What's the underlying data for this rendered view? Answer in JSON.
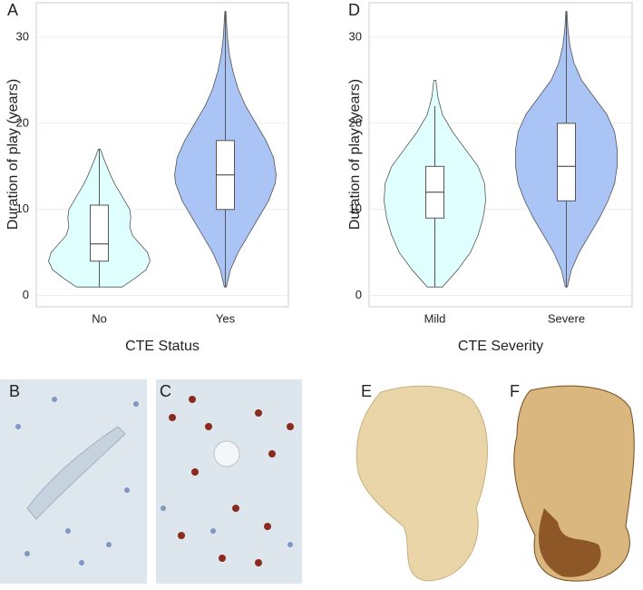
{
  "chart_data": [
    {
      "type": "violin",
      "panel_label": "A",
      "y_label": "Duration of play (years)",
      "x_label": "CTE Status",
      "ylim": [
        -1.3,
        34
      ],
      "yticks": [
        0,
        10,
        20,
        30
      ],
      "grid": true,
      "groups": [
        {
          "name": "No",
          "color": "#e0ffff",
          "box": {
            "min": 1,
            "q1": 4,
            "median": 6,
            "q3": 10.5,
            "max": 17
          },
          "violin": {
            "y": [
              1,
              2,
              3,
              4,
              5,
              6,
              7,
              8,
              9,
              10,
              11,
              12,
              13,
              14,
              15,
              16,
              17
            ],
            "width": [
              0.45,
              0.7,
              0.92,
              1.0,
              0.95,
              0.8,
              0.65,
              0.6,
              0.62,
              0.6,
              0.5,
              0.4,
              0.3,
              0.22,
              0.15,
              0.08,
              0.02
            ]
          }
        },
        {
          "name": "Yes",
          "color": "#a9c4f5",
          "box": {
            "min": 1,
            "q1": 10,
            "median": 14,
            "q3": 18,
            "max": 33
          },
          "violin": {
            "y": [
              1,
              3,
              5,
              7,
              9,
              11,
              13,
              14,
              16,
              18,
              20,
              22,
              24,
              26,
              28,
              30,
              33
            ],
            "width": [
              0.02,
              0.1,
              0.25,
              0.45,
              0.65,
              0.85,
              0.98,
              1.0,
              0.95,
              0.8,
              0.6,
              0.4,
              0.25,
              0.15,
              0.08,
              0.04,
              0.01
            ]
          }
        }
      ]
    },
    {
      "type": "violin",
      "panel_label": "D",
      "y_label": "Duration of play (years)",
      "x_label": "CTE Severity",
      "ylim": [
        -1.3,
        34
      ],
      "yticks": [
        0,
        10,
        20,
        30
      ],
      "grid": true,
      "groups": [
        {
          "name": "Mild",
          "color": "#e0ffff",
          "box": {
            "min": 1,
            "q1": 9,
            "median": 12,
            "q3": 15,
            "max": 22
          },
          "violin": {
            "y": [
              1,
              3,
              5,
              7,
              9,
              11,
              13,
              15,
              17,
              19,
              21,
              23,
              25
            ],
            "width": [
              0.15,
              0.45,
              0.7,
              0.85,
              0.95,
              1.0,
              0.98,
              0.85,
              0.6,
              0.35,
              0.15,
              0.06,
              0.02
            ]
          }
        },
        {
          "name": "Severe",
          "color": "#a9c4f5",
          "box": {
            "min": 1,
            "q1": 11,
            "median": 15,
            "q3": 20,
            "max": 33
          },
          "violin": {
            "y": [
              1,
              3,
              5,
              7,
              9,
              11,
              13,
              15,
              17,
              19,
              21,
              23,
              25,
              27,
              29,
              31,
              33
            ],
            "width": [
              0.02,
              0.1,
              0.25,
              0.45,
              0.65,
              0.82,
              0.95,
              1.0,
              1.0,
              0.95,
              0.8,
              0.55,
              0.3,
              0.15,
              0.07,
              0.03,
              0.01
            ]
          }
        }
      ]
    }
  ],
  "panels": [
    {
      "label": "B"
    },
    {
      "label": "C"
    },
    {
      "label": "E"
    },
    {
      "label": "F"
    }
  ]
}
